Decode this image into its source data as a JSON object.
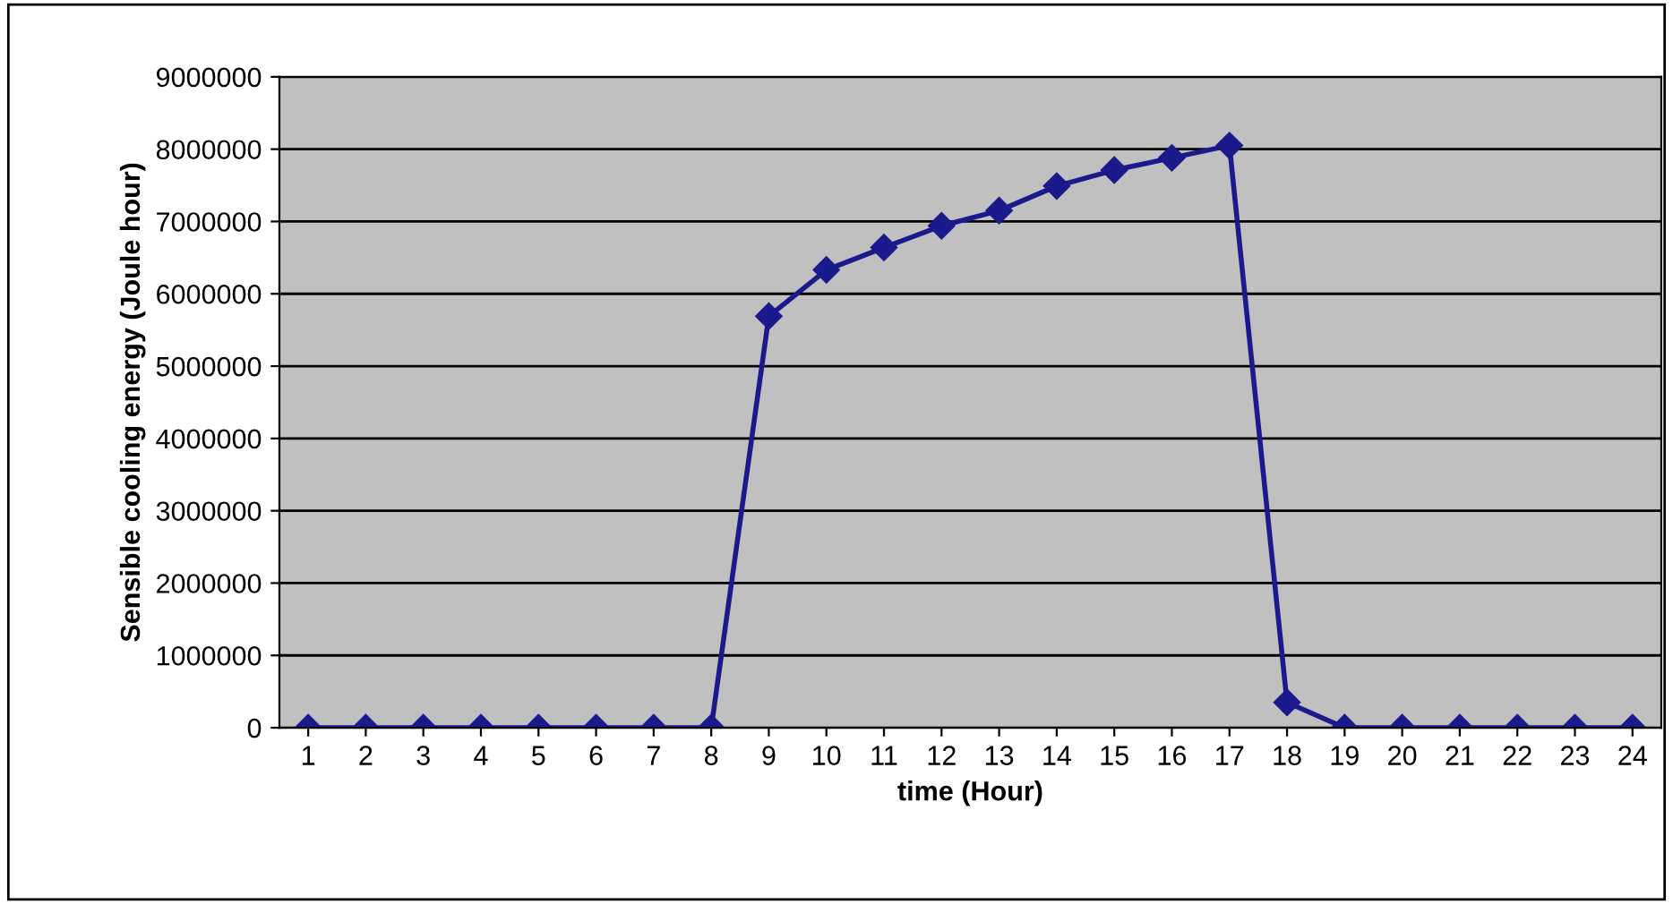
{
  "chart_data": {
    "type": "line",
    "xlabel": "time (Hour)",
    "ylabel": "Sensible cooling energy (Joule hour)",
    "categories": [
      "1",
      "2",
      "3",
      "4",
      "5",
      "6",
      "7",
      "8",
      "9",
      "10",
      "11",
      "12",
      "13",
      "14",
      "15",
      "16",
      "17",
      "18",
      "19",
      "20",
      "21",
      "22",
      "23",
      "24"
    ],
    "series": [
      {
        "color": "#1a1a8c",
        "values": [
          0,
          0,
          0,
          0,
          0,
          0,
          0,
          0,
          5690000,
          6330000,
          6640000,
          6940000,
          7150000,
          7490000,
          7710000,
          7880000,
          8050000,
          350000,
          0,
          0,
          0,
          0,
          0,
          0
        ]
      }
    ],
    "ylim": [
      0,
      9000000
    ],
    "yticks": [
      0,
      1000000,
      2000000,
      3000000,
      4000000,
      5000000,
      6000000,
      7000000,
      8000000,
      9000000
    ],
    "grid": "y",
    "legend": false,
    "marker": "diamond",
    "line_style": "solid"
  }
}
